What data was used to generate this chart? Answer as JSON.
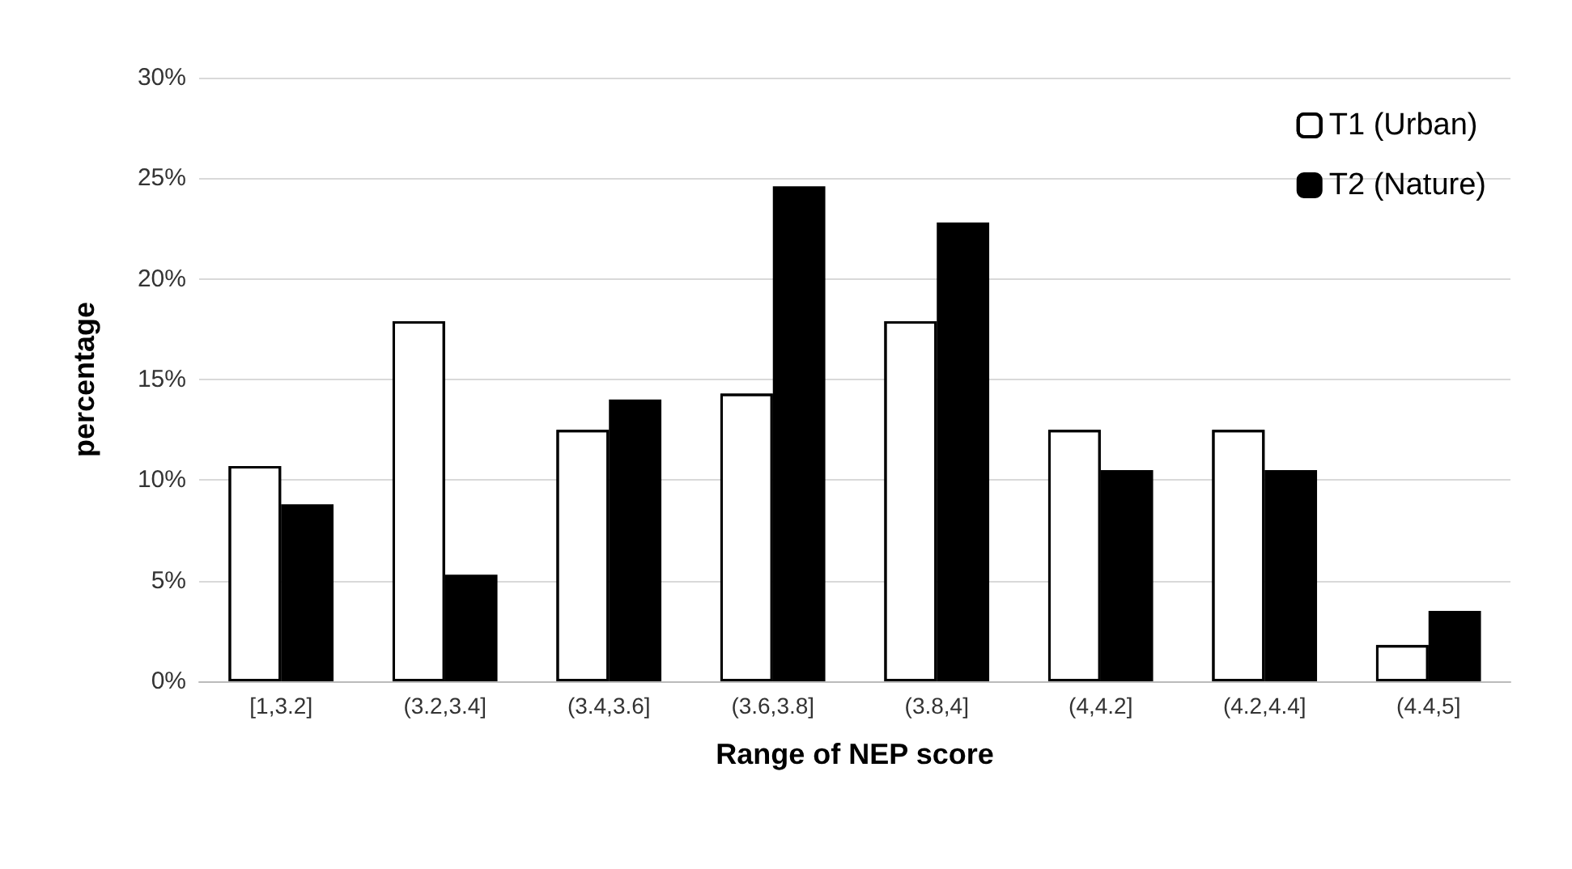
{
  "chart_data": {
    "type": "bar",
    "xlabel": "Range of NEP score",
    "ylabel": "percentage",
    "categories": [
      "[1,3.2]",
      "(3.2,3.4]",
      "(3.4,3.6]",
      "(3.6,3.8]",
      "(3.8,4]",
      "(4,4.2]",
      "(4.2,4.4]",
      "(4.4,5]"
    ],
    "series": [
      {
        "name": "T1 (Urban)",
        "color": "#ffffff",
        "values": [
          10.7,
          17.9,
          12.5,
          14.3,
          17.9,
          12.5,
          12.5,
          1.8
        ]
      },
      {
        "name": "T2 (Nature)",
        "color": "#000000",
        "values": [
          8.8,
          5.3,
          14.0,
          24.6,
          22.8,
          10.5,
          10.5,
          3.5
        ]
      }
    ],
    "ylim": [
      0,
      30
    ],
    "yticks": [
      {
        "value": 0,
        "label": "0%"
      },
      {
        "value": 5,
        "label": "5%"
      },
      {
        "value": 10,
        "label": "10%"
      },
      {
        "value": 15,
        "label": "15%"
      },
      {
        "value": 20,
        "label": "20%"
      },
      {
        "value": 25,
        "label": "25%"
      },
      {
        "value": 30,
        "label": "30%"
      }
    ],
    "grid": "y",
    "legend": "top right"
  }
}
